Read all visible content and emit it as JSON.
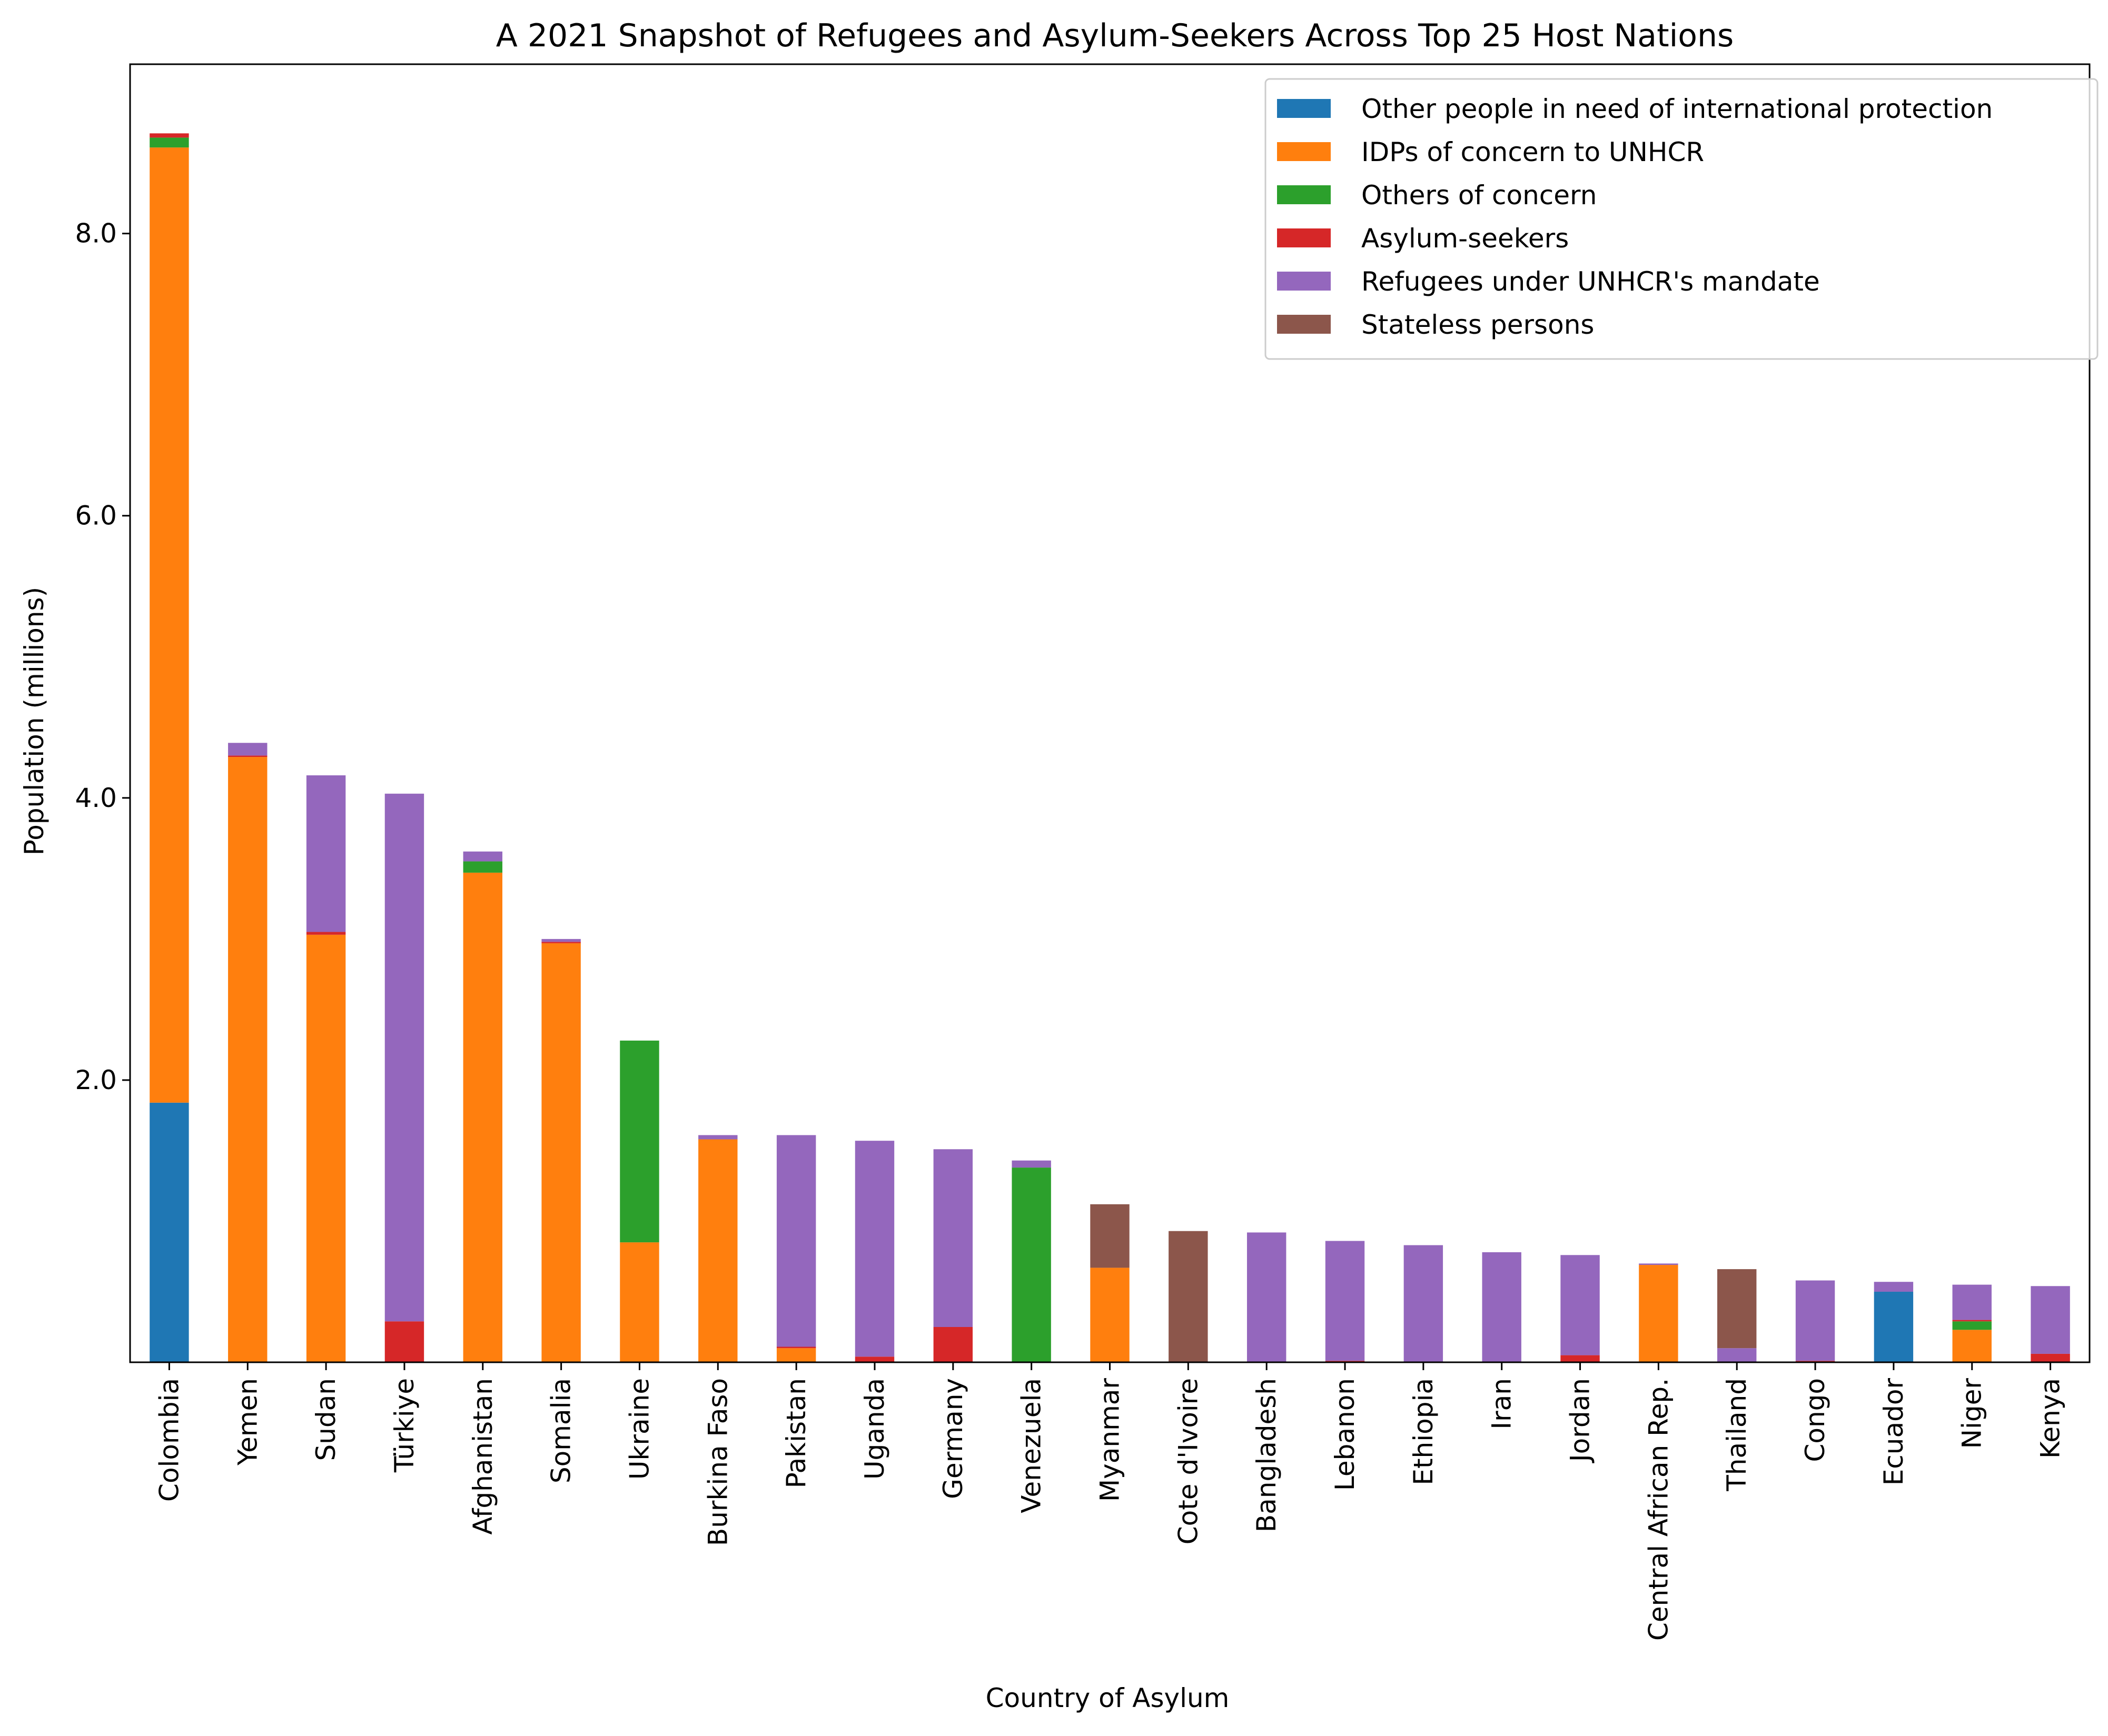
{
  "chart_data": {
    "type": "bar",
    "stacked": true,
    "title": "A 2021 Snapshot of Refugees and Asylum-Seekers Across Top 25 Host Nations",
    "xlabel": "Country of Asylum",
    "ylabel": "Population (millions)",
    "ylim": [
      0,
      9.2
    ],
    "yticks": [
      2.0,
      4.0,
      6.0,
      8.0
    ],
    "grid": false,
    "legend_position": "top-right",
    "categories": [
      "Colombia",
      "Yemen",
      "Sudan",
      "Türkiye",
      "Afghanistan",
      "Somalia",
      "Ukraine",
      "Burkina Faso",
      "Pakistan",
      "Uganda",
      "Germany",
      "Venezuela",
      "Myanmar",
      "Cote d'Ivoire",
      "Bangladesh",
      "Lebanon",
      "Ethiopia",
      "Iran",
      "Jordan",
      "Central African Rep.",
      "Thailand",
      "Congo",
      "Ecuador",
      "Niger",
      "Kenya"
    ],
    "series": [
      {
        "name": "Other people in need of international protection",
        "color": "#1f77b4",
        "values": [
          1.84,
          0,
          0,
          0,
          0,
          0,
          0,
          0,
          0,
          0,
          0,
          0,
          0,
          0,
          0,
          0,
          0,
          0,
          0,
          0,
          0,
          0,
          0.5,
          0,
          0
        ]
      },
      {
        "name": "IDPs of concern to UNHCR",
        "color": "#ff7f0e",
        "values": [
          6.77,
          4.29,
          3.03,
          0,
          3.47,
          2.97,
          0.85,
          1.58,
          0.1,
          0,
          0,
          0,
          0.67,
          0,
          0,
          0,
          0,
          0,
          0,
          0.69,
          0,
          0,
          0,
          0.23,
          0
        ]
      },
      {
        "name": "Others of concern",
        "color": "#2ca02c",
        "values": [
          0.07,
          0,
          0,
          0,
          0.08,
          0,
          1.43,
          0,
          0,
          0,
          0,
          1.38,
          0,
          0,
          0,
          0,
          0,
          0,
          0,
          0,
          0,
          0,
          0,
          0.06,
          0
        ]
      },
      {
        "name": "Asylum-seekers",
        "color": "#d62728",
        "values": [
          0.03,
          0.01,
          0.02,
          0.29,
          0,
          0.01,
          0,
          0,
          0.01,
          0.04,
          0.25,
          0,
          0,
          0,
          0,
          0.01,
          0,
          0,
          0.05,
          0,
          0,
          0.01,
          0,
          0.01,
          0.06
        ]
      },
      {
        "name": "Refugees under UNHCR's mandate",
        "color": "#9467bd",
        "values": [
          0,
          0.09,
          1.11,
          3.74,
          0.07,
          0.02,
          0,
          0.03,
          1.5,
          1.53,
          1.26,
          0.05,
          0,
          0,
          0.92,
          0.85,
          0.83,
          0.78,
          0.71,
          0.01,
          0.1,
          0.57,
          0.07,
          0.25,
          0.48
        ]
      },
      {
        "name": "Stateless persons",
        "color": "#8c564b",
        "values": [
          0,
          0,
          0,
          0,
          0,
          0,
          0,
          0,
          0,
          0,
          0,
          0,
          0.45,
          0.93,
          0,
          0,
          0,
          0,
          0,
          0,
          0.56,
          0,
          0,
          0,
          0
        ]
      }
    ]
  }
}
